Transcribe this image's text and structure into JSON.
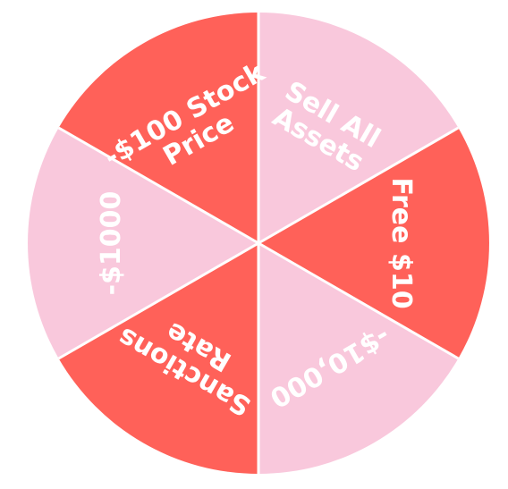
{
  "wheel": {
    "segments": [
      {
        "id": "sell-all-assets",
        "lines": [
          "Sell All",
          "Assets"
        ],
        "color": "#f9c8dc"
      },
      {
        "id": "free-10",
        "lines": [
          "Free $10"
        ],
        "color": "#ff6159"
      },
      {
        "id": "minus-10000",
        "lines": [
          "-$10,000"
        ],
        "color": "#f9c8dc"
      },
      {
        "id": "sanctions-rate",
        "lines": [
          "Sanctions",
          "Rate"
        ],
        "color": "#ff6159"
      },
      {
        "id": "minus-1000",
        "lines": [
          "-$1000"
        ],
        "color": "#f9c8dc"
      },
      {
        "id": "minus-100-stock-price",
        "lines": [
          "-$100 Stock",
          "Price"
        ],
        "color": "#ff6159"
      }
    ],
    "colors": {
      "light": "#f9c8dc",
      "dark": "#ff6159",
      "divider": "#ffffff",
      "text": "#ffffff"
    }
  }
}
